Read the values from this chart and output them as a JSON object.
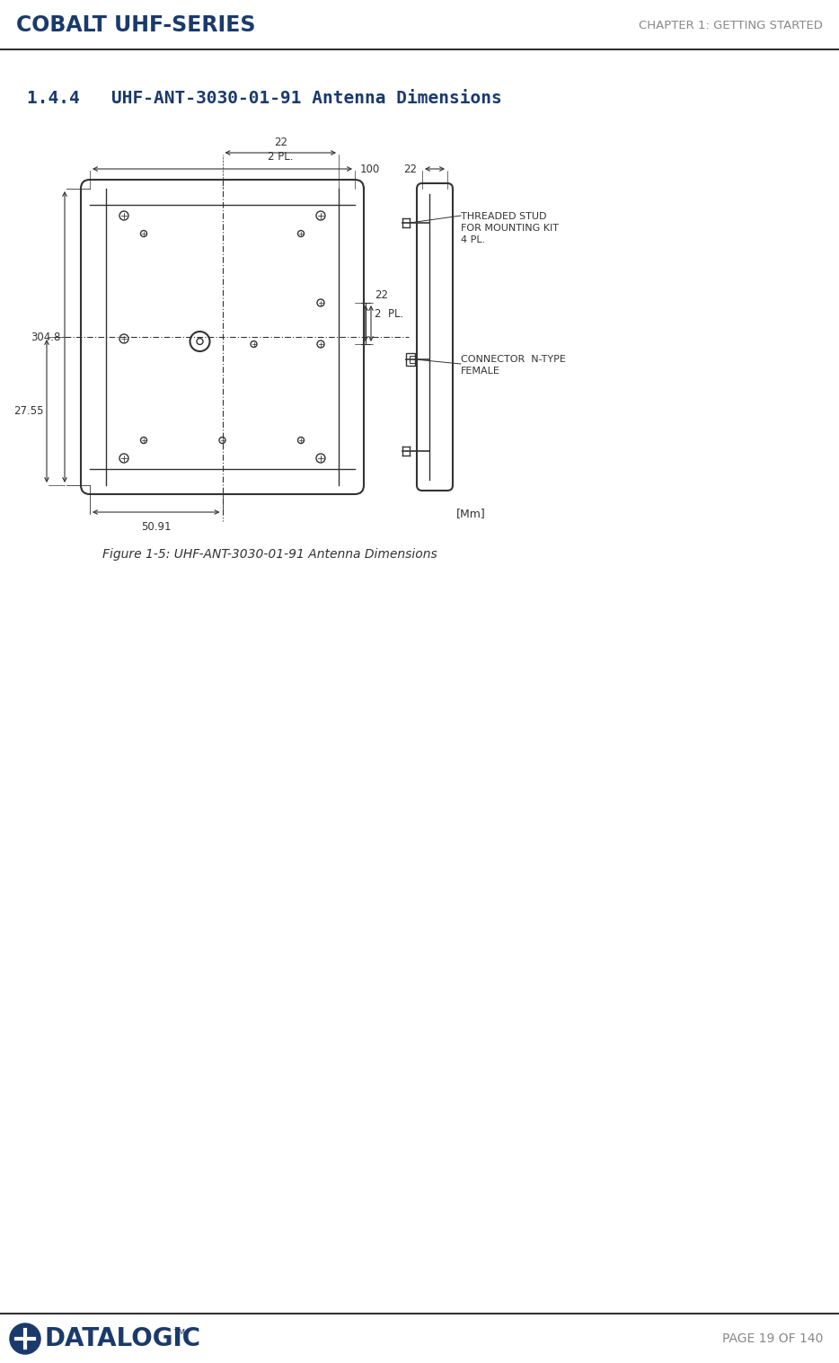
{
  "page_title_left": "COBALT UHF-SERIES",
  "page_title_right": "CHAPTER 1: GETTING STARTED",
  "section_title": "1.4.4   UHF-ANT-3030-01-91 Antenna Dimensions",
  "figure_caption": "Figure 1-5: UHF-ANT-3030-01-91 Antenna Dimensions",
  "page_footer": "PAGE 19 OF 140",
  "dim_304_8": "304.8",
  "dim_27_55": "27.55",
  "dim_50_91": "50.91",
  "dim_22_top": "22",
  "dim_2pl_top": "2 PL.",
  "dim_100": "100",
  "dim_22_right": "22",
  "dim_2pl_right": "2  PL.",
  "dim_22_side": "22",
  "label_threaded": "THREADED STUD\nFOR MOUNTING KIT\n4 PL.",
  "label_connector": "CONNECTOR  N-TYPE\nFEMALE",
  "label_mm": "[Mm]",
  "header_color": "#1a3a6b",
  "header_right_color": "#888888",
  "section_color": "#1a3a6b",
  "line_color": "#333333",
  "bg_color": "#ffffff"
}
